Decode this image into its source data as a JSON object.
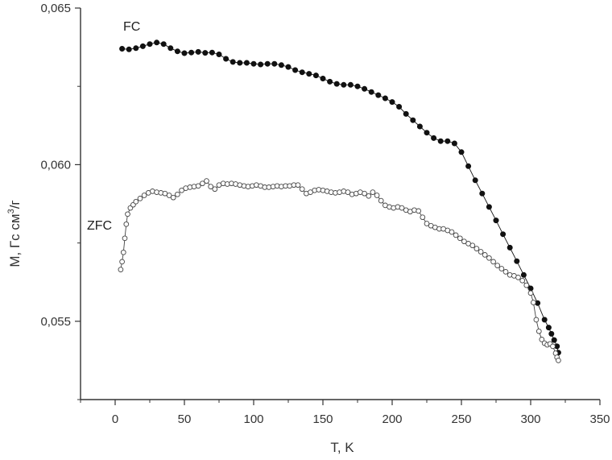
{
  "chart_data": {
    "type": "scatter",
    "xlabel": "T, K",
    "ylabel": "M, Гс см³/г",
    "ylabel_parts": {
      "main": "M, Гс см",
      "sup": "3",
      "tail": "/г"
    },
    "xlim": [
      -25,
      350
    ],
    "ylim": [
      0.0525,
      0.065
    ],
    "x_ticks": [
      0,
      50,
      100,
      150,
      200,
      250,
      300,
      350
    ],
    "x_tick_labels": [
      "0",
      "50",
      "100",
      "150",
      "200",
      "250",
      "300",
      "350"
    ],
    "y_ticks": [
      0.055,
      0.06,
      0.065
    ],
    "y_tick_labels": [
      "0,055",
      "0,060",
      "0,065"
    ],
    "grid": false,
    "series": [
      {
        "name": "FC",
        "marker": "filled-circle",
        "color": "#111111",
        "points": [
          [
            5,
            0.0637
          ],
          [
            10,
            0.06368
          ],
          [
            15,
            0.06372
          ],
          [
            20,
            0.06378
          ],
          [
            25,
            0.06385
          ],
          [
            30,
            0.0639
          ],
          [
            35,
            0.06385
          ],
          [
            40,
            0.06372
          ],
          [
            45,
            0.06362
          ],
          [
            50,
            0.06356
          ],
          [
            55,
            0.06358
          ],
          [
            60,
            0.0636
          ],
          [
            65,
            0.06357
          ],
          [
            70,
            0.06358
          ],
          [
            75,
            0.06352
          ],
          [
            80,
            0.06338
          ],
          [
            85,
            0.06328
          ],
          [
            90,
            0.06325
          ],
          [
            95,
            0.06325
          ],
          [
            100,
            0.06322
          ],
          [
            105,
            0.0632
          ],
          [
            110,
            0.06322
          ],
          [
            115,
            0.06322
          ],
          [
            120,
            0.06318
          ],
          [
            125,
            0.06312
          ],
          [
            130,
            0.06302
          ],
          [
            135,
            0.06295
          ],
          [
            140,
            0.0629
          ],
          [
            145,
            0.06285
          ],
          [
            150,
            0.06275
          ],
          [
            155,
            0.06265
          ],
          [
            160,
            0.06258
          ],
          [
            165,
            0.06255
          ],
          [
            170,
            0.06255
          ],
          [
            175,
            0.0625
          ],
          [
            180,
            0.06242
          ],
          [
            185,
            0.06232
          ],
          [
            190,
            0.06222
          ],
          [
            195,
            0.06212
          ],
          [
            200,
            0.062
          ],
          [
            205,
            0.06185
          ],
          [
            210,
            0.06162
          ],
          [
            215,
            0.06142
          ],
          [
            220,
            0.06122
          ],
          [
            225,
            0.06102
          ],
          [
            230,
            0.06085
          ],
          [
            235,
            0.06075
          ],
          [
            240,
            0.06075
          ],
          [
            245,
            0.06068
          ],
          [
            250,
            0.0604
          ],
          [
            255,
            0.05995
          ],
          [
            260,
            0.0595
          ],
          [
            265,
            0.05908
          ],
          [
            270,
            0.05865
          ],
          [
            275,
            0.05822
          ],
          [
            280,
            0.05778
          ],
          [
            285,
            0.05735
          ],
          [
            290,
            0.05692
          ],
          [
            295,
            0.05648
          ],
          [
            300,
            0.05605
          ],
          [
            305,
            0.05558
          ],
          [
            310,
            0.05505
          ],
          [
            313,
            0.0548
          ],
          [
            315,
            0.0546
          ],
          [
            317,
            0.0544
          ],
          [
            319,
            0.0542
          ],
          [
            320,
            0.054
          ]
        ]
      },
      {
        "name": "ZFC",
        "marker": "open-circle",
        "color": "#444444",
        "points": [
          [
            4,
            0.05665
          ],
          [
            5,
            0.0569
          ],
          [
            6,
            0.0572
          ],
          [
            7,
            0.05765
          ],
          [
            8,
            0.0581
          ],
          [
            9,
            0.05842
          ],
          [
            11,
            0.05862
          ],
          [
            13,
            0.05872
          ],
          [
            15,
            0.05882
          ],
          [
            18,
            0.05892
          ],
          [
            21,
            0.05902
          ],
          [
            24,
            0.0591
          ],
          [
            27,
            0.05915
          ],
          [
            30,
            0.05912
          ],
          [
            33,
            0.0591
          ],
          [
            36,
            0.05908
          ],
          [
            39,
            0.05902
          ],
          [
            42,
            0.05895
          ],
          [
            45,
            0.05905
          ],
          [
            48,
            0.05918
          ],
          [
            51,
            0.05925
          ],
          [
            54,
            0.05928
          ],
          [
            57,
            0.0593
          ],
          [
            60,
            0.05932
          ],
          [
            63,
            0.0594
          ],
          [
            66,
            0.05948
          ],
          [
            69,
            0.0593
          ],
          [
            72,
            0.05922
          ],
          [
            75,
            0.05935
          ],
          [
            78,
            0.0594
          ],
          [
            81,
            0.05938
          ],
          [
            84,
            0.0594
          ],
          [
            87,
            0.05938
          ],
          [
            90,
            0.05935
          ],
          [
            93,
            0.05932
          ],
          [
            96,
            0.0593
          ],
          [
            99,
            0.05932
          ],
          [
            102,
            0.05935
          ],
          [
            105,
            0.05932
          ],
          [
            108,
            0.05928
          ],
          [
            111,
            0.05928
          ],
          [
            114,
            0.0593
          ],
          [
            117,
            0.05932
          ],
          [
            120,
            0.0593
          ],
          [
            123,
            0.05932
          ],
          [
            126,
            0.05932
          ],
          [
            129,
            0.05935
          ],
          [
            132,
            0.05935
          ],
          [
            135,
            0.05922
          ],
          [
            138,
            0.05908
          ],
          [
            141,
            0.05912
          ],
          [
            144,
            0.05918
          ],
          [
            147,
            0.0592
          ],
          [
            150,
            0.05918
          ],
          [
            153,
            0.05915
          ],
          [
            156,
            0.05912
          ],
          [
            159,
            0.0591
          ],
          [
            162,
            0.05912
          ],
          [
            165,
            0.05915
          ],
          [
            168,
            0.05912
          ],
          [
            171,
            0.05905
          ],
          [
            174,
            0.05908
          ],
          [
            177,
            0.05912
          ],
          [
            180,
            0.05908
          ],
          [
            183,
            0.059
          ],
          [
            186,
            0.05912
          ],
          [
            189,
            0.05902
          ],
          [
            192,
            0.05885
          ],
          [
            195,
            0.0587
          ],
          [
            198,
            0.05865
          ],
          [
            201,
            0.05862
          ],
          [
            204,
            0.05865
          ],
          [
            207,
            0.05862
          ],
          [
            210,
            0.05855
          ],
          [
            213,
            0.0585
          ],
          [
            216,
            0.05855
          ],
          [
            219,
            0.05852
          ],
          [
            222,
            0.05832
          ],
          [
            225,
            0.05812
          ],
          [
            228,
            0.05805
          ],
          [
            231,
            0.058
          ],
          [
            234,
            0.05795
          ],
          [
            237,
            0.05795
          ],
          [
            240,
            0.0579
          ],
          [
            243,
            0.05785
          ],
          [
            246,
            0.05775
          ],
          [
            249,
            0.05765
          ],
          [
            252,
            0.05755
          ],
          [
            255,
            0.05748
          ],
          [
            258,
            0.05742
          ],
          [
            261,
            0.05732
          ],
          [
            264,
            0.05722
          ],
          [
            267,
            0.05712
          ],
          [
            270,
            0.05702
          ],
          [
            273,
            0.0569
          ],
          [
            276,
            0.05678
          ],
          [
            279,
            0.05668
          ],
          [
            282,
            0.05658
          ],
          [
            285,
            0.05648
          ],
          [
            288,
            0.05645
          ],
          [
            291,
            0.0564
          ],
          [
            294,
            0.0563
          ],
          [
            297,
            0.05615
          ],
          [
            300,
            0.0559
          ],
          [
            302,
            0.0556
          ],
          [
            304,
            0.05505
          ],
          [
            306,
            0.05468
          ],
          [
            308,
            0.05442
          ],
          [
            310,
            0.0543
          ],
          [
            312,
            0.05425
          ],
          [
            314,
            0.05428
          ],
          [
            316,
            0.0542
          ],
          [
            318,
            0.05398
          ],
          [
            319,
            0.05385
          ],
          [
            320,
            0.05375
          ]
        ]
      }
    ]
  }
}
